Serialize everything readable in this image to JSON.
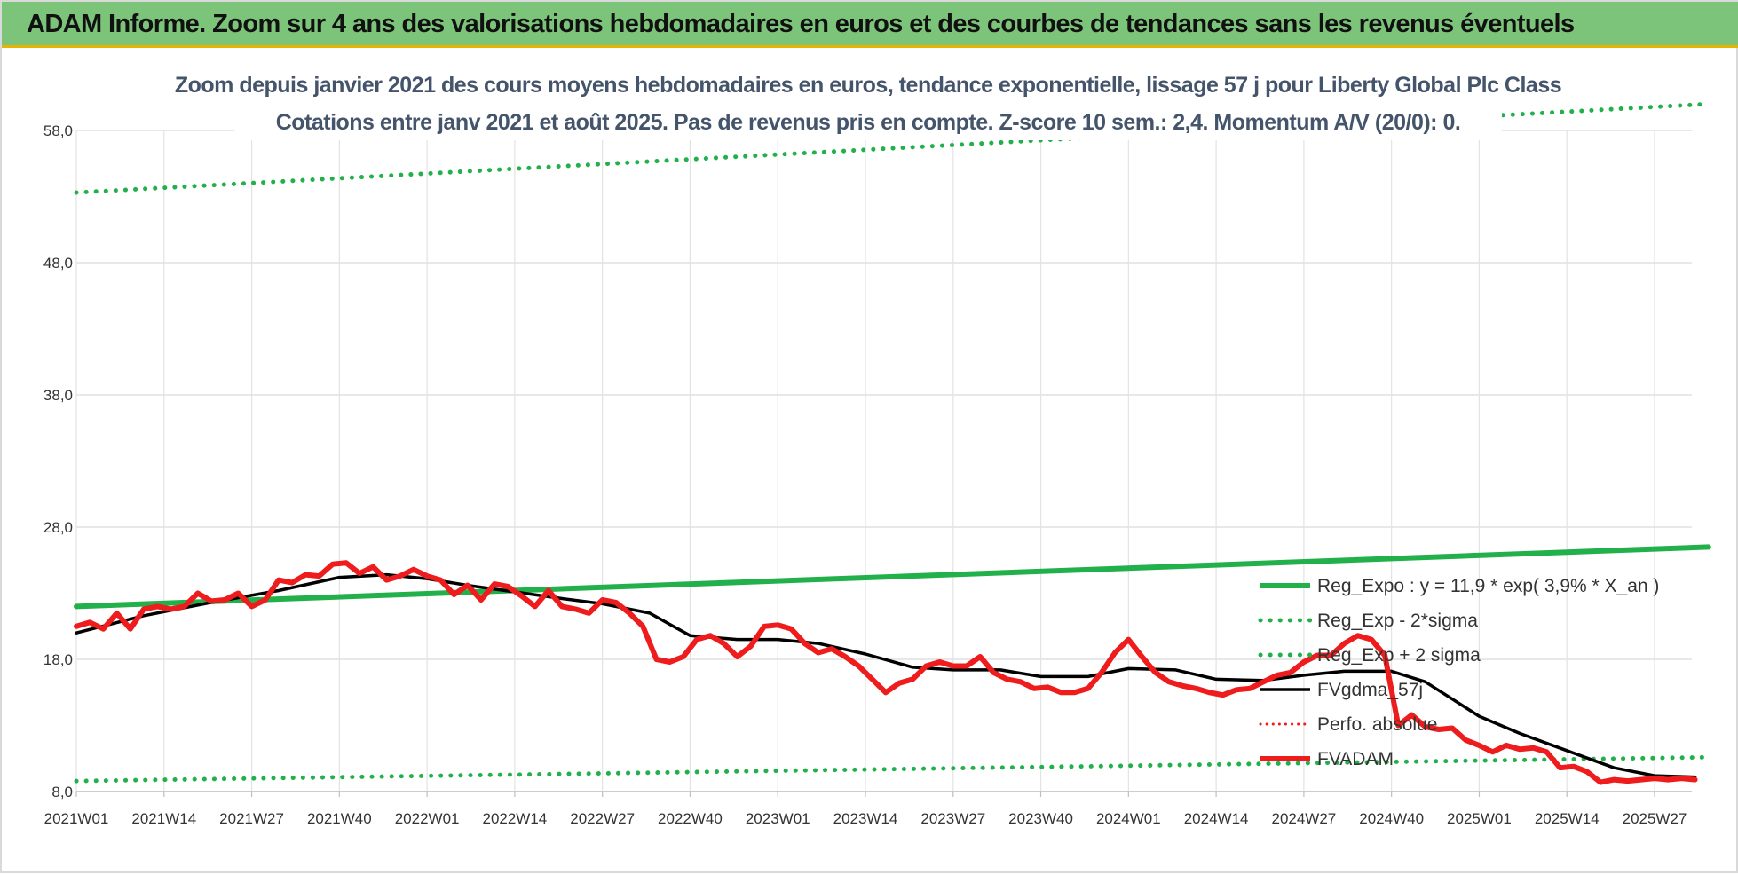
{
  "banner": {
    "title": "ADAM Informe. Zoom sur 4 ans des valorisations hebdomadaires en euros et des courbes de tendances sans les revenus éventuels"
  },
  "colors": {
    "trend": "#22b04b",
    "band": "#22b04b",
    "smooth": "#000000",
    "price": "#ee1c1c",
    "perfo": "#ee1c1c",
    "banner": "#7cc47a"
  },
  "chart_data": {
    "type": "line",
    "title_line1": "Zoom depuis janvier 2021 des cours moyens hebdomadaires en euros, tendance exponentielle, lissage 57 j pour Liberty Global Plc Class",
    "title_line2": "Cotations entre janv 2021 et août 2025.  Pas de revenus pris en compte. Z-score 10 sem.: 2,4. Momentum A/V (20/0): 0.",
    "x_tick_labels": [
      "2021W01",
      "2021W14",
      "2021W27",
      "2021W40",
      "2022W01",
      "2022W14",
      "2022W27",
      "2022W40",
      "2023W01",
      "2023W14",
      "2023W27",
      "2023W40",
      "2024W01",
      "2024W14",
      "2024W27",
      "2024W40",
      "2025W01",
      "2025W14",
      "2025W27"
    ],
    "x_tick_weeks": [
      0,
      13,
      26,
      39,
      52,
      65,
      78,
      91,
      104,
      117,
      130,
      143,
      156,
      169,
      182,
      195,
      208,
      221,
      234
    ],
    "y_tick_labels": [
      "8,0",
      "18,0",
      "28,0",
      "38,0",
      "48,0",
      "58,0"
    ],
    "y_tick_values": [
      8,
      18,
      28,
      38,
      48,
      58
    ],
    "ylim": [
      8,
      60
    ],
    "xlim": [
      0,
      242
    ],
    "grid": true,
    "legend_position": "right-bottom",
    "series": [
      {
        "name": "Reg_Expo : y = 11,9 * exp( 3,9% *  X_an )",
        "style": "solid-thick",
        "x": [
          0,
          242
        ],
        "y": [
          22.0,
          26.5
        ]
      },
      {
        "name": "Reg_Exp - 2*sigma",
        "style": "dotted",
        "x": [
          0,
          242
        ],
        "y": [
          8.8,
          10.6
        ]
      },
      {
        "name": "Reg_Exp + 2 sigma",
        "style": "dotted",
        "x": [
          0,
          242
        ],
        "y": [
          53.3,
          60.0
        ]
      },
      {
        "name": "FVgdma_57j",
        "style": "solid",
        "x": [
          0,
          10,
          20,
          30,
          39,
          46,
          52,
          58,
          65,
          72,
          78,
          85,
          91,
          98,
          104,
          110,
          117,
          124,
          130,
          137,
          143,
          150,
          156,
          163,
          169,
          176,
          182,
          188,
          195,
          200,
          204,
          208,
          214,
          221,
          228,
          234,
          240
        ],
        "y": [
          20.0,
          21.3,
          22.3,
          23.2,
          24.2,
          24.4,
          24.1,
          23.6,
          23.1,
          22.6,
          22.2,
          21.5,
          19.8,
          19.5,
          19.5,
          19.2,
          18.4,
          17.4,
          17.2,
          17.2,
          16.7,
          16.7,
          17.3,
          17.2,
          16.5,
          16.4,
          16.8,
          17.1,
          17.1,
          16.3,
          15.0,
          13.7,
          12.4,
          11.1,
          9.8,
          9.2,
          9.1
        ]
      },
      {
        "name": "Perfo. absolue",
        "style": "dotted",
        "x": [],
        "y": []
      },
      {
        "name": "FVADAM",
        "style": "solid-thick",
        "x": [
          0,
          2,
          4,
          6,
          8,
          10,
          12,
          14,
          16,
          18,
          20,
          22,
          24,
          26,
          28,
          30,
          32,
          34,
          36,
          38,
          40,
          42,
          44,
          46,
          48,
          50,
          52,
          54,
          56,
          58,
          60,
          62,
          64,
          66,
          68,
          70,
          72,
          74,
          76,
          78,
          80,
          82,
          84,
          86,
          88,
          90,
          92,
          94,
          96,
          98,
          100,
          102,
          104,
          106,
          108,
          110,
          112,
          114,
          116,
          118,
          120,
          122,
          124,
          126,
          128,
          130,
          132,
          134,
          136,
          138,
          140,
          142,
          144,
          146,
          148,
          150,
          152,
          154,
          156,
          158,
          160,
          162,
          164,
          166,
          168,
          170,
          172,
          174,
          176,
          178,
          180,
          182,
          184,
          186,
          188,
          190,
          192,
          194,
          196,
          198,
          200,
          202,
          204,
          206,
          208,
          210,
          212,
          214,
          216,
          218,
          220,
          222,
          224,
          226,
          228,
          230,
          232,
          234,
          236,
          238,
          240
        ],
        "y": [
          20.5,
          20.8,
          20.3,
          21.5,
          20.3,
          21.8,
          22.0,
          21.8,
          22.0,
          23.0,
          22.4,
          22.5,
          23.0,
          22.0,
          22.5,
          24.0,
          23.8,
          24.4,
          24.3,
          25.2,
          25.3,
          24.5,
          25.0,
          24.0,
          24.3,
          24.8,
          24.3,
          24.0,
          22.9,
          23.6,
          22.5,
          23.7,
          23.5,
          22.8,
          22.0,
          23.2,
          22.0,
          21.8,
          21.5,
          22.5,
          22.3,
          21.5,
          20.5,
          18.0,
          17.8,
          18.2,
          19.5,
          19.8,
          19.2,
          18.2,
          19.0,
          20.5,
          20.6,
          20.3,
          19.2,
          18.5,
          18.8,
          18.2,
          17.5,
          16.5,
          15.5,
          16.2,
          16.5,
          17.5,
          17.8,
          17.5,
          17.5,
          18.2,
          17.0,
          16.5,
          16.3,
          15.8,
          15.9,
          15.5,
          15.5,
          15.8,
          17.0,
          18.5,
          19.5,
          18.2,
          17.0,
          16.3,
          16.0,
          15.8,
          15.5,
          15.3,
          15.7,
          15.8,
          16.3,
          16.8,
          17.0,
          17.8,
          18.3,
          18.3,
          19.2,
          19.8,
          19.5,
          18.3,
          13.0,
          13.8,
          12.9,
          12.7,
          12.8,
          11.9,
          11.5,
          11.0,
          11.5,
          11.2,
          11.3,
          11.0,
          9.8,
          9.9,
          9.5,
          8.7,
          8.9,
          8.8,
          8.9,
          9.0,
          8.9,
          9.0,
          8.9
        ]
      }
    ]
  }
}
